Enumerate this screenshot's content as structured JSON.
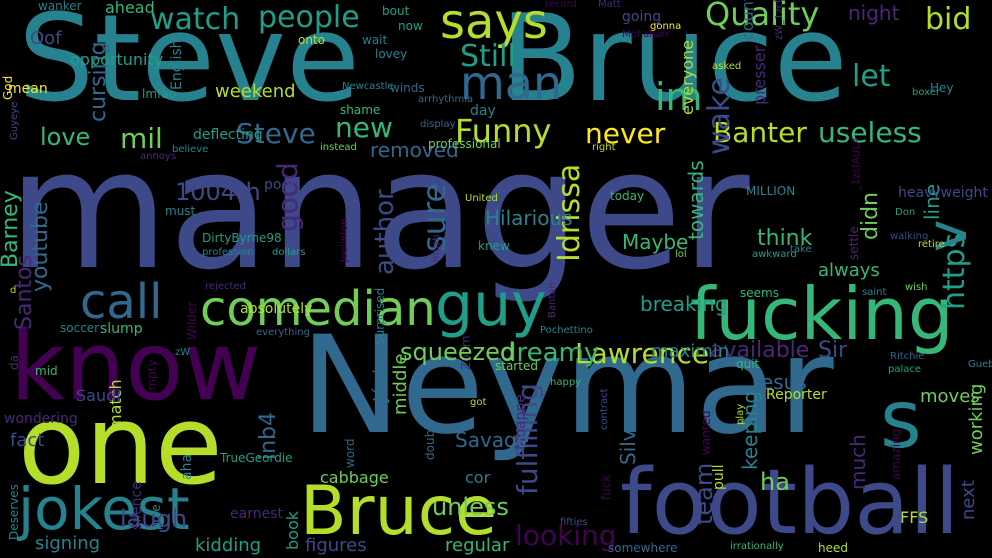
{
  "palette": {
    "background": "#000000",
    "colors": [
      "#440154",
      "#482878",
      "#3e4989",
      "#31688e",
      "#26828e",
      "#1f9e89",
      "#35b779",
      "#6ece58",
      "#b5de2b",
      "#fde725"
    ]
  },
  "words": [
    {
      "name": "word-manager",
      "text": "manager"
    },
    {
      "name": "word-neymar",
      "text": "Neymar"
    },
    {
      "name": "word-bruce-large",
      "text": "Bruce"
    },
    {
      "name": "word-steve-large",
      "text": "Steve"
    },
    {
      "name": "word-know",
      "text": "know"
    },
    {
      "name": "word-one",
      "text": "one"
    },
    {
      "name": "word-football",
      "text": "football"
    },
    {
      "name": "word-fucking",
      "text": "fucking"
    },
    {
      "name": "word-s",
      "text": "s"
    },
    {
      "name": "word-jokest",
      "text": "jokest"
    },
    {
      "name": "word-bruce-small",
      "text": "Bruce"
    },
    {
      "name": "word-guy",
      "text": "guy"
    },
    {
      "name": "word-comedian",
      "text": "comedian"
    },
    {
      "name": "word-call",
      "text": "call"
    },
    {
      "name": "word-man",
      "text": "man"
    },
    {
      "name": "word-says",
      "text": "says"
    },
    {
      "name": "word-quality",
      "text": "Quality"
    },
    {
      "name": "word-watch",
      "text": "watch"
    },
    {
      "name": "word-people",
      "text": "people"
    },
    {
      "name": "word-funny",
      "text": "Funny"
    },
    {
      "name": "word-banter",
      "text": "Banter"
    },
    {
      "name": "word-useless",
      "text": "useless"
    },
    {
      "name": "word-never",
      "text": "never"
    },
    {
      "name": "word-steve-small",
      "text": "Steve"
    },
    {
      "name": "word-new",
      "text": "new"
    },
    {
      "name": "word-im",
      "text": "im"
    },
    {
      "name": "word-still",
      "text": "Still"
    },
    {
      "name": "word-let",
      "text": "let"
    },
    {
      "name": "word-bid",
      "text": "bid"
    },
    {
      "name": "word-night",
      "text": "night"
    },
    {
      "name": "word-love",
      "text": "love"
    },
    {
      "name": "word-mil",
      "text": "mil"
    },
    {
      "name": "word-wake",
      "text": "wake"
    },
    {
      "name": "word-https",
      "text": "https"
    },
    {
      "name": "word-v",
      "text": "v"
    },
    {
      "name": "word-idrissa",
      "text": "Idrissa"
    },
    {
      "name": "word-sure",
      "text": "sure"
    },
    {
      "name": "word-good",
      "text": "good"
    },
    {
      "name": "word-author",
      "text": "author"
    },
    {
      "name": "word-santos",
      "text": "Santos"
    },
    {
      "name": "word-barney",
      "text": "Barney"
    },
    {
      "name": "word-cursing",
      "text": "cursing"
    },
    {
      "name": "word-fulfilling",
      "text": "fulfilling"
    },
    {
      "name": "word-inb4",
      "text": "inb4"
    },
    {
      "name": "word-team",
      "text": "team"
    },
    {
      "name": "word-much",
      "text": "much"
    },
    {
      "name": "word-didn",
      "text": "didn"
    },
    {
      "name": "word-line",
      "text": "line"
    },
    {
      "name": "word-towards",
      "text": "towards"
    },
    {
      "name": "word-youtube",
      "text": "youtube"
    },
    {
      "name": "word-middle",
      "text": "middle"
    },
    {
      "name": "word-match",
      "text": "match"
    },
    {
      "name": "word-junior",
      "text": "Júnior"
    },
    {
      "name": "word-next",
      "text": "next"
    },
    {
      "name": "word-working",
      "text": "working"
    },
    {
      "name": "word-silva",
      "text": "Silva"
    },
    {
      "name": "word-keeping",
      "text": "keeping"
    },
    {
      "name": "word-book",
      "text": "book"
    },
    {
      "name": "word-everyone",
      "text": "everyone"
    },
    {
      "name": "word-count",
      "text": "count"
    },
    {
      "name": "word-presser",
      "text": "presser"
    },
    {
      "name": "word-settle",
      "text": "settle"
    },
    {
      "name": "word-surprised",
      "text": "Surprised"
    },
    {
      "name": "word-zoom",
      "text": "Zoom"
    },
    {
      "name": "word-da",
      "text": "da"
    },
    {
      "name": "word-empty",
      "text": "empty"
    },
    {
      "name": "word-aha",
      "text": "aha"
    },
    {
      "name": "word-pole",
      "text": "pole"
    },
    {
      "name": "word-silence",
      "text": "silence"
    },
    {
      "name": "word-deserves",
      "text": "Deserves"
    },
    {
      "name": "word-word",
      "text": "word"
    },
    {
      "name": "word-double",
      "text": "double"
    },
    {
      "name": "word-mbappe",
      "text": "Mbappe"
    },
    {
      "name": "word-wanted",
      "text": "wanted"
    },
    {
      "name": "word-pull",
      "text": "pull"
    },
    {
      "name": "word-fuck",
      "text": "fuck"
    },
    {
      "name": "word-contract",
      "text": "contract"
    },
    {
      "name": "word-amazing",
      "text": "amazing"
    },
    {
      "name": "word-play",
      "text": "play"
    },
    {
      "name": "word-god",
      "text": "God"
    },
    {
      "name": "word-guyeye",
      "text": "Guyeye"
    },
    {
      "name": "word-english",
      "text": "English"
    },
    {
      "name": "word-joelinton",
      "text": "Joelinton"
    },
    {
      "name": "word-wilder",
      "text": "Wilder"
    },
    {
      "name": "word-bantah",
      "text": "Bantah"
    },
    {
      "name": "word-mush",
      "text": "mush"
    },
    {
      "name": "word-zw-1zctaula",
      "text": "zW_1zctAULA"
    },
    {
      "name": "word-1zctaula",
      "text": "_1zctAULA"
    },
    {
      "name": "word-lawrence",
      "text": "Lawrence"
    },
    {
      "name": "word-dreamy",
      "text": "dreamy"
    },
    {
      "name": "word-squeezed",
      "text": "squeezed"
    },
    {
      "name": "word-unless",
      "text": "unless"
    },
    {
      "name": "word-looking",
      "text": "looking"
    },
    {
      "name": "word-savage",
      "text": "Savage"
    },
    {
      "name": "word-ha",
      "text": "ha"
    },
    {
      "name": "word-think",
      "text": "think"
    },
    {
      "name": "word-maybe",
      "text": "Maybe"
    },
    {
      "name": "word-hilarious",
      "text": "Hilarious"
    },
    {
      "name": "word-removed",
      "text": "removed"
    },
    {
      "name": "word-1004th",
      "text": "1004th"
    },
    {
      "name": "word-sir",
      "text": "Sir"
    },
    {
      "name": "word-jesus",
      "text": "Jesus"
    },
    {
      "name": "word-available",
      "text": "available"
    },
    {
      "name": "word-maximin",
      "text": "maximin"
    },
    {
      "name": "word-breaking",
      "text": "breaking"
    },
    {
      "name": "word-always",
      "text": "always"
    },
    {
      "name": "word-regular",
      "text": "regular"
    },
    {
      "name": "word-figures",
      "text": "figures"
    },
    {
      "name": "word-laugh",
      "text": "laugh"
    },
    {
      "name": "word-kidding",
      "text": "kidding"
    },
    {
      "name": "word-signing",
      "text": "signing"
    },
    {
      "name": "word-cabbage",
      "text": "cabbage"
    },
    {
      "name": "word-cor",
      "text": "cor"
    },
    {
      "name": "word-ffs",
      "text": "FFS"
    },
    {
      "name": "word-moves",
      "text": "moves"
    },
    {
      "name": "word-fact",
      "text": "fact"
    },
    {
      "name": "word-wondering",
      "text": "wondering"
    },
    {
      "name": "word-weekend",
      "text": "weekend"
    },
    {
      "name": "word-oof",
      "text": "Oof"
    },
    {
      "name": "word-ahead",
      "text": "ahead"
    },
    {
      "name": "word-absolutely",
      "text": "absolutely"
    },
    {
      "name": "word-slump",
      "text": "slump"
    },
    {
      "name": "word-heavyweight",
      "text": "heavyweight"
    },
    {
      "name": "word-reporter",
      "text": "Reporter"
    },
    {
      "name": "word-deflecting",
      "text": "deflecting"
    },
    {
      "name": "word-opportunity",
      "text": "opportunity"
    },
    {
      "name": "word-mean",
      "text": "mean"
    },
    {
      "name": "word-wanker",
      "text": "wanker"
    },
    {
      "name": "word-bout",
      "text": "bout"
    },
    {
      "name": "word-now",
      "text": "now"
    },
    {
      "name": "word-onto",
      "text": "onto"
    },
    {
      "name": "word-wait",
      "text": "wait"
    },
    {
      "name": "word-lovey",
      "text": "lovey"
    },
    {
      "name": "word-record",
      "text": "record"
    },
    {
      "name": "word-matt",
      "text": "Matt"
    },
    {
      "name": "word-going",
      "text": "going"
    },
    {
      "name": "word-mohahah",
      "text": "Mohahah"
    },
    {
      "name": "word-gonna",
      "text": "gonna"
    },
    {
      "name": "word-asked",
      "text": "asked"
    },
    {
      "name": "word-hey",
      "text": "Hey"
    },
    {
      "name": "word-boxer",
      "text": "boxer"
    },
    {
      "name": "word-winds",
      "text": "winds"
    },
    {
      "name": "word-arrhythmia",
      "text": "arrhythmia"
    },
    {
      "name": "word-newcastle",
      "text": "Newcastle"
    },
    {
      "name": "word-shame",
      "text": "shame"
    },
    {
      "name": "word-day",
      "text": "day"
    },
    {
      "name": "word-display",
      "text": "display"
    },
    {
      "name": "word-professional",
      "text": "professional"
    },
    {
      "name": "word-instead",
      "text": "instead"
    },
    {
      "name": "word-right",
      "text": "right"
    },
    {
      "name": "word-believe",
      "text": "believe"
    },
    {
      "name": "word-annoys",
      "text": "annoys"
    },
    {
      "name": "word-lmfao",
      "text": "lmfao"
    },
    {
      "name": "word-poor",
      "text": "poor"
    },
    {
      "name": "word-must",
      "text": "must"
    },
    {
      "name": "word-dirtybyrne98",
      "text": "DirtyByrne98"
    },
    {
      "name": "word-profession",
      "text": "profession"
    },
    {
      "name": "word-dollars",
      "text": "dollars"
    },
    {
      "name": "word-united",
      "text": "United"
    },
    {
      "name": "word-today",
      "text": "today"
    },
    {
      "name": "word-million",
      "text": "MILLION"
    },
    {
      "name": "word-knew",
      "text": "knew"
    },
    {
      "name": "word-lol",
      "text": "lol"
    },
    {
      "name": "word-awkward",
      "text": "awkward"
    },
    {
      "name": "word-take",
      "text": "take"
    },
    {
      "name": "word-retire",
      "text": "retire"
    },
    {
      "name": "word-walking",
      "text": "walking"
    },
    {
      "name": "word-don",
      "text": "Don"
    },
    {
      "name": "word-seems",
      "text": "seems"
    },
    {
      "name": "word-saint",
      "text": "saint"
    },
    {
      "name": "word-wish",
      "text": "wish"
    },
    {
      "name": "word-d",
      "text": "d"
    },
    {
      "name": "word-soccer",
      "text": "soccer"
    },
    {
      "name": "word-rejected",
      "text": "rejected"
    },
    {
      "name": "word-everything",
      "text": "everything"
    },
    {
      "name": "word-pochettino",
      "text": "Pochettino"
    },
    {
      "name": "word-mid",
      "text": "mid"
    },
    {
      "name": "word-zw",
      "text": "zW"
    },
    {
      "name": "word-started",
      "text": "started"
    },
    {
      "name": "word-happy",
      "text": "happy"
    },
    {
      "name": "word-got",
      "text": "got"
    },
    {
      "name": "word-quit",
      "text": "quit"
    },
    {
      "name": "word-palace",
      "text": "palace"
    },
    {
      "name": "word-ritchie",
      "text": "Ritchie"
    },
    {
      "name": "word-guebye",
      "text": "Guebye"
    },
    {
      "name": "word-saudi",
      "text": "Saudi"
    },
    {
      "name": "word-truegeordie",
      "text": "TrueGeordie"
    },
    {
      "name": "word-earnest",
      "text": "earnest"
    },
    {
      "name": "word-fifties",
      "text": "fifties"
    },
    {
      "name": "word-somewhere",
      "text": "somewhere"
    },
    {
      "name": "word-irrationally",
      "text": "irrationally"
    },
    {
      "name": "word-heed",
      "text": "heed"
    }
  ]
}
